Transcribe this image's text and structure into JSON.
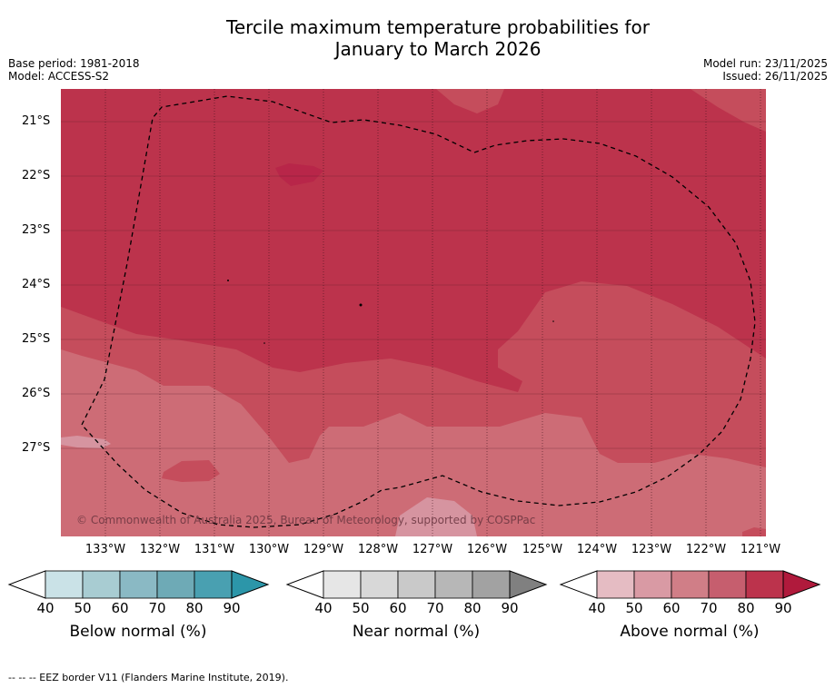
{
  "header": {
    "title_line1": "Tercile maximum temperature probabilities for",
    "title_line2": "January to March 2026",
    "base_period": "Base period: 1981-2018",
    "model": "Model: ACCESS-S2",
    "model_run": "Model run: 23/11/2025",
    "issued": "Issued: 26/11/2025"
  },
  "map": {
    "lat_labels": [
      "21°S",
      "22°S",
      "23°S",
      "24°S",
      "25°S",
      "26°S",
      "27°S"
    ],
    "lon_labels": [
      "133°W",
      "132°W",
      "131°W",
      "130°W",
      "129°W",
      "128°W",
      "127°W",
      "126°W",
      "125°W",
      "124°W",
      "123°W",
      "122°W",
      "121°W"
    ],
    "copyright": "© Commonwealth of Australia 2025, Bureau of Meteorology, supported by COSPPac",
    "colors": {
      "above_80": "#bc334c",
      "above_70": "#c54d5c",
      "above_60": "#cd6c76",
      "above_50": "#d694a0",
      "above_90": "#b82649"
    }
  },
  "colorbars": [
    {
      "name": "Below normal (%)",
      "ticks": [
        "40",
        "50",
        "60",
        "70",
        "80",
        "90"
      ],
      "colors": [
        "#cae2e7",
        "#a8ccd2",
        "#8ab9c4",
        "#6eaab6",
        "#49a0b1",
        "#2c96a9"
      ]
    },
    {
      "name": "Near normal (%)",
      "ticks": [
        "40",
        "50",
        "60",
        "70",
        "80",
        "90"
      ],
      "colors": [
        "#e6e6e6",
        "#d8d8d8",
        "#c9c9c9",
        "#b7b7b7",
        "#a2a2a2",
        "#808080"
      ]
    },
    {
      "name": "Above normal (%)",
      "ticks": [
        "40",
        "50",
        "60",
        "70",
        "80",
        "90"
      ],
      "colors": [
        "#e5bcc3",
        "#d99aa4",
        "#d07e87",
        "#c65e6e",
        "#bc334c",
        "#b01a3c"
      ]
    }
  ],
  "footnote": "--  --  -- EEZ border V11 (Flanders Marine Institute, 2019)."
}
